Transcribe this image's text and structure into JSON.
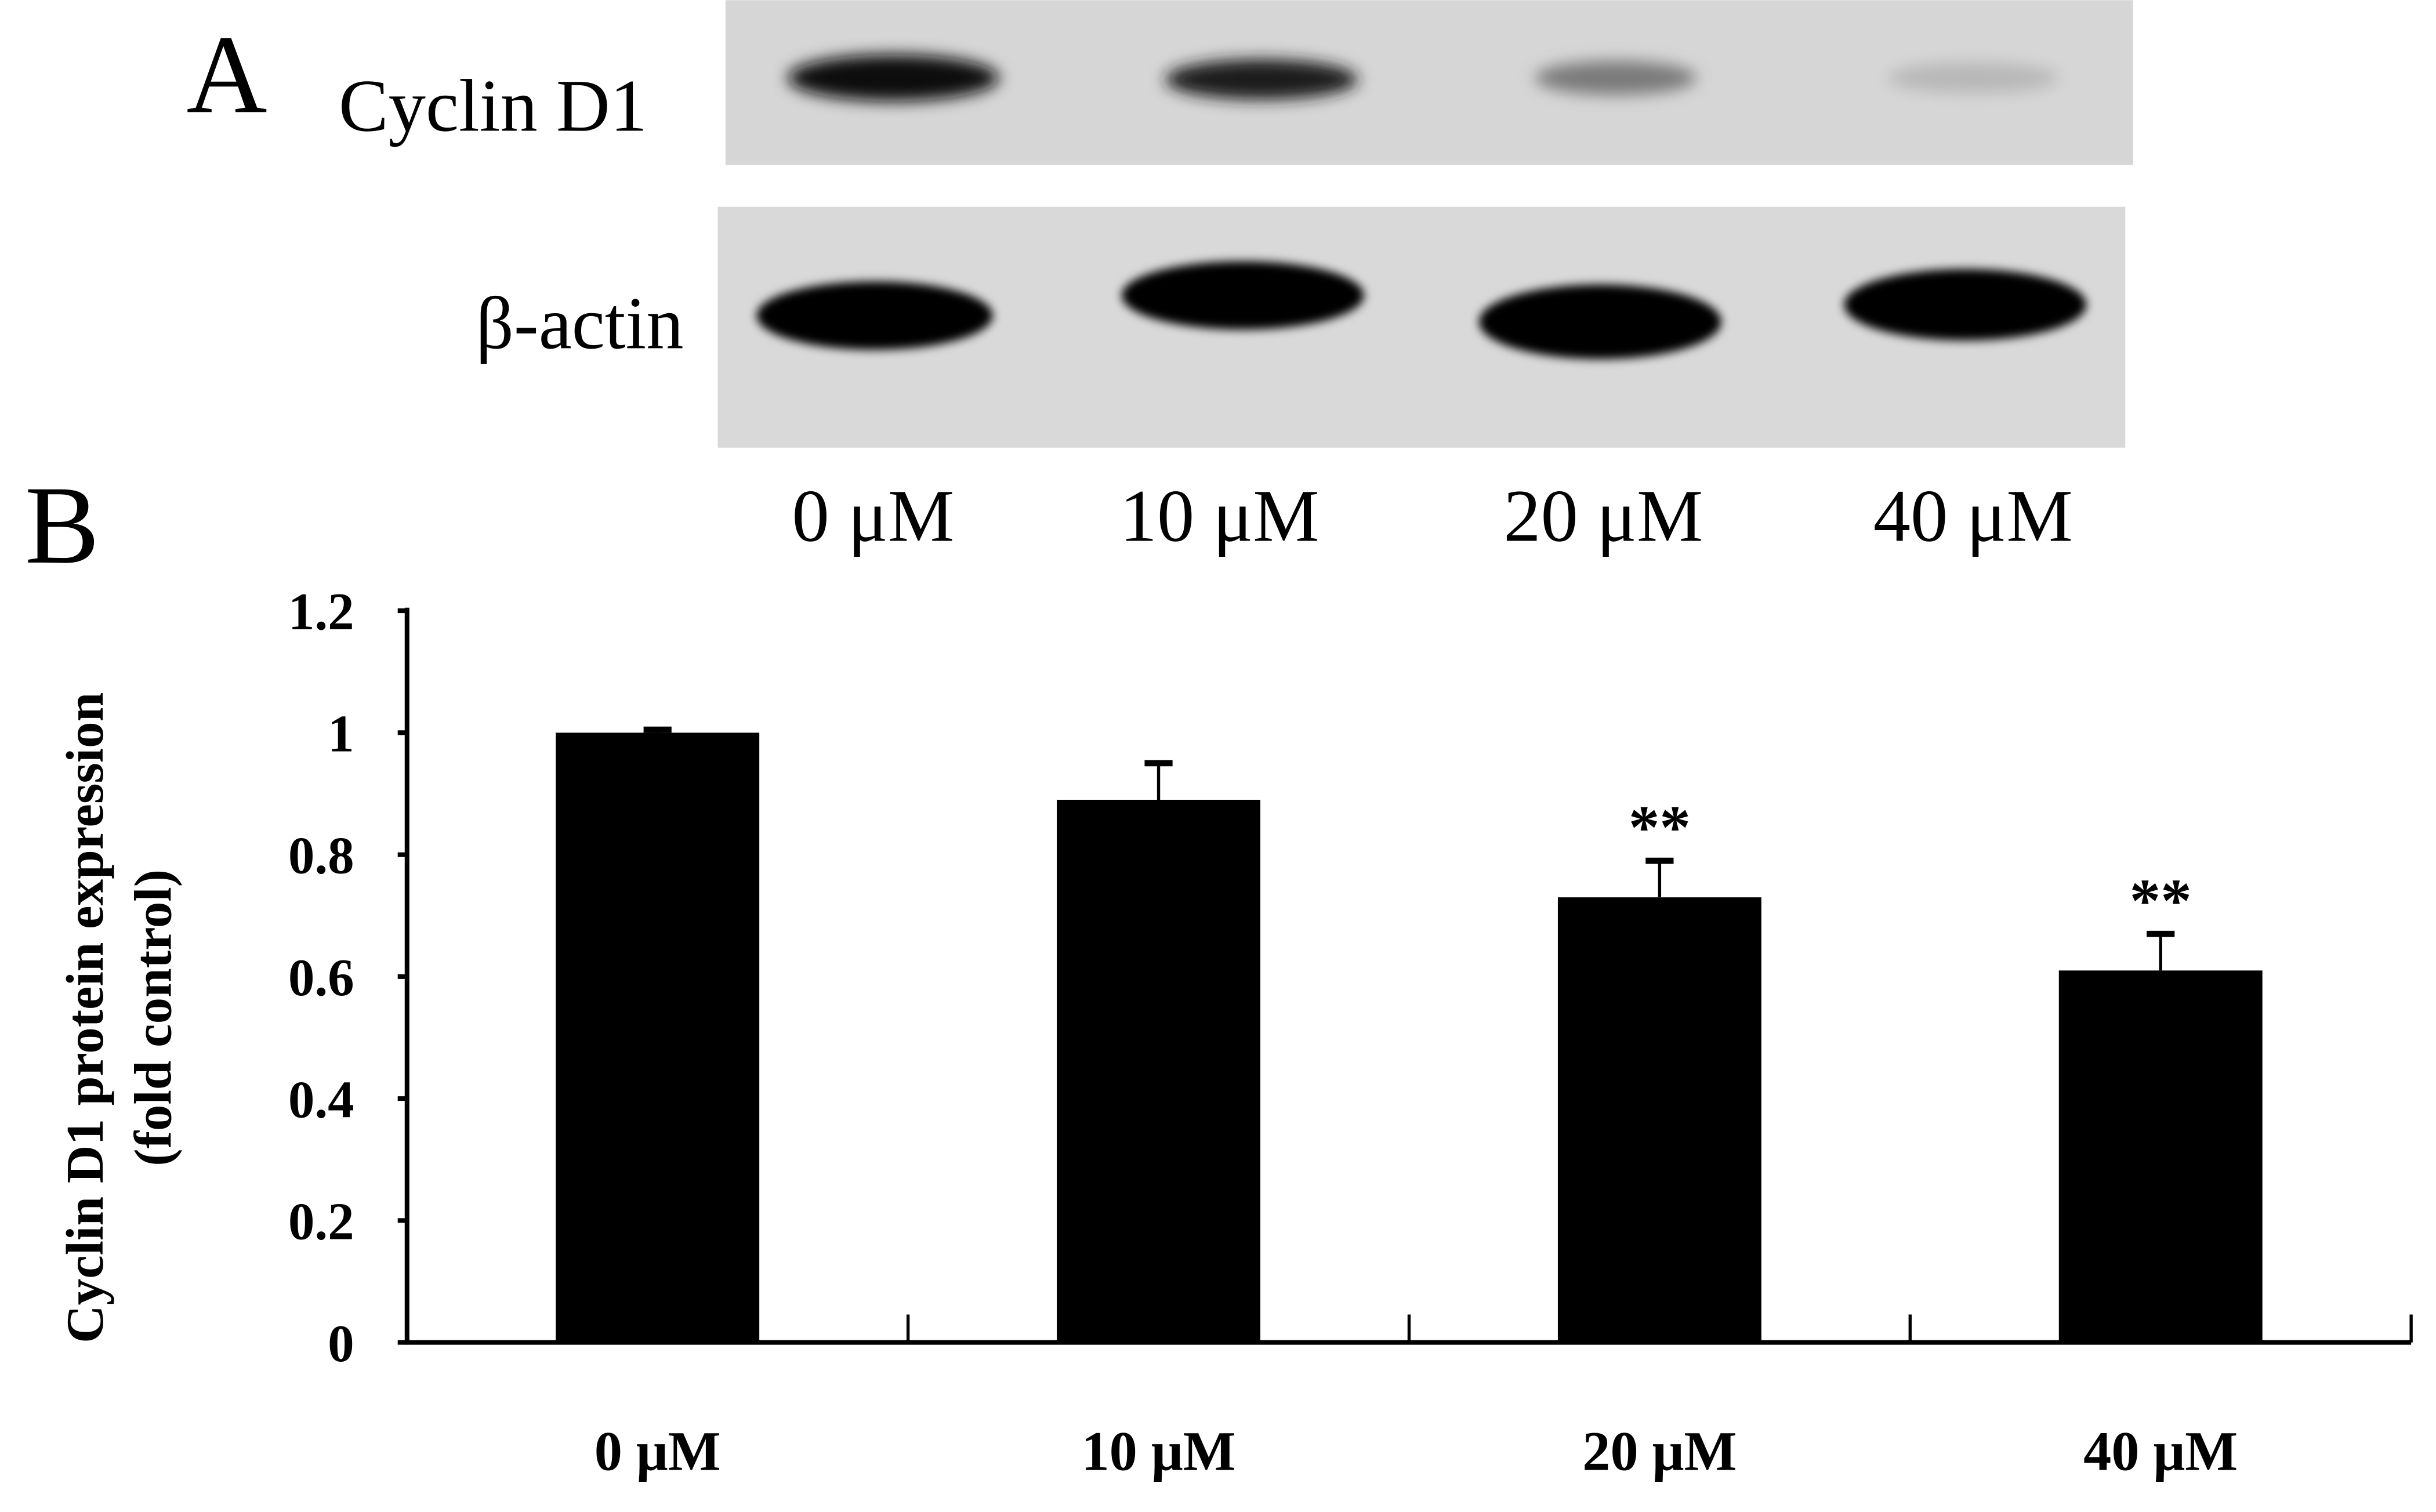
{
  "panel_a": {
    "label": "A",
    "rows": [
      {
        "label": "Cyclin D1"
      },
      {
        "label": "β-actin"
      }
    ],
    "lanes": [
      "0 μM",
      "10 μM",
      "20 μM",
      "40 μM"
    ]
  },
  "panel_b": {
    "label": "B"
  },
  "chart_data": {
    "type": "bar",
    "categories": [
      "0 μM",
      "10 μM",
      "20 μM",
      "40 μM"
    ],
    "values": [
      1.0,
      0.89,
      0.73,
      0.61
    ],
    "error_upper": [
      1.005,
      0.95,
      0.79,
      0.67
    ],
    "annotations": [
      "",
      "",
      "**",
      "**"
    ],
    "ylabel_line1": "Cyclin D1 protein expression",
    "ylabel_line2": "(fold control)",
    "xlabel": "",
    "ylim": [
      0,
      1.2
    ],
    "yticks": [
      "0",
      "0.2",
      "0.4",
      "0.6",
      "0.8",
      "1",
      "1.2"
    ],
    "ytick_values": [
      0,
      0.2,
      0.4,
      0.6,
      0.8,
      1.0,
      1.2
    ],
    "bar_color": "#000000",
    "grid": false
  }
}
